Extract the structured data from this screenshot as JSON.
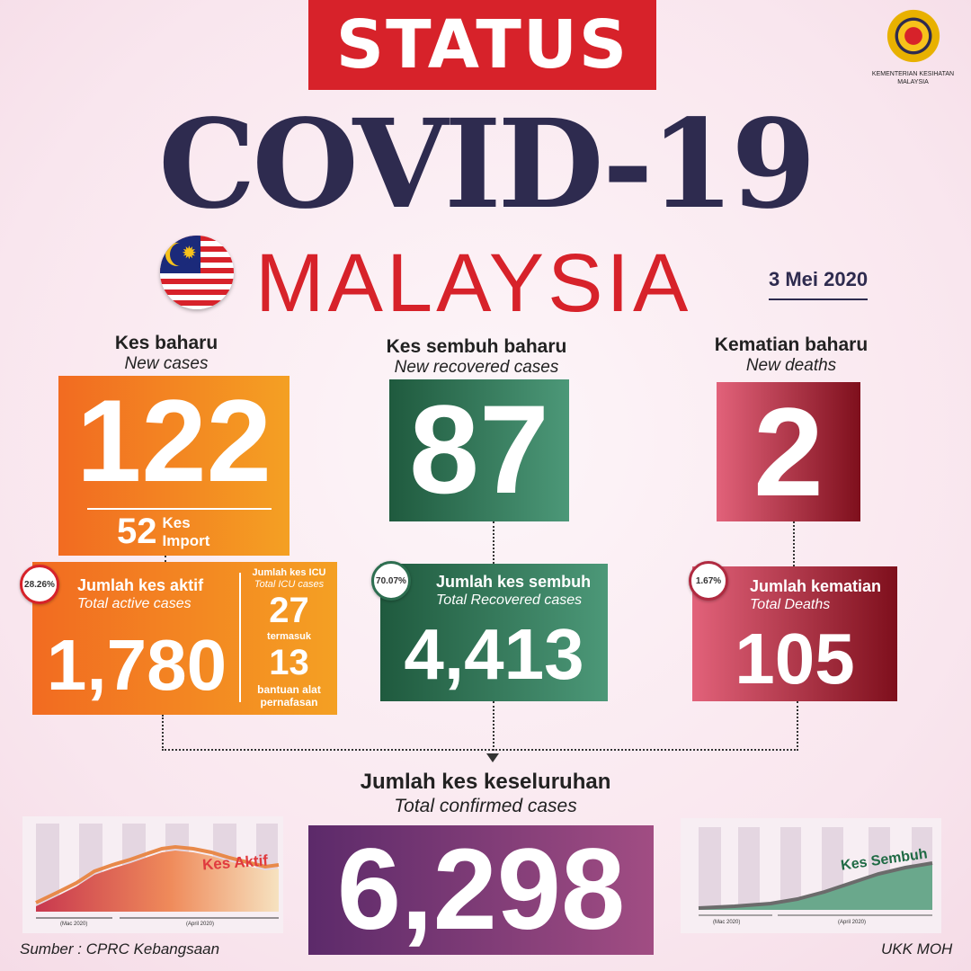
{
  "header": {
    "status": "STATUS",
    "title": "COVID-19",
    "country": "MALAYSIA",
    "date": "3 Mei 2020"
  },
  "logo": {
    "text": "KEMENTERIAN KESIHATAN MALAYSIA"
  },
  "new_cases": {
    "label": "Kes baharu",
    "sublabel": "New cases",
    "value": "122",
    "import_value": "52",
    "import_label1": "Kes",
    "import_label2": "Import",
    "color": "#f26b21"
  },
  "new_recovered": {
    "label": "Kes sembuh baharu",
    "sublabel": "New recovered cases",
    "value": "87",
    "color": "#2d6e50"
  },
  "new_deaths": {
    "label": "Kematian baharu",
    "sublabel": "New deaths",
    "value": "2",
    "color": "#b02a40"
  },
  "active": {
    "percent": "28.26%",
    "label": "Jumlah kes aktif",
    "sublabel": "Total active cases",
    "value": "1,780",
    "icu": {
      "label": "Jumlah kes ICU",
      "sublabel": "Total ICU cases",
      "value": "27",
      "including": "termasuk",
      "ventilator_value": "13",
      "ventilator_label": "bantuan alat pernafasan"
    }
  },
  "recovered": {
    "percent": "70.07%",
    "label": "Jumlah kes sembuh",
    "sublabel": "Total Recovered cases",
    "value": "4,413"
  },
  "deaths": {
    "percent": "1.67%",
    "label": "Jumlah kematian",
    "sublabel": "Total Deaths",
    "value": "105"
  },
  "total": {
    "label": "Jumlah kes keseluruhan",
    "sublabel": "Total confirmed cases",
    "value": "6,298",
    "color": "#7a3a78"
  },
  "charts": {
    "active": {
      "label": "Kes Aktif",
      "month1": "(Mac 2020)",
      "month2": "(April 2020)"
    },
    "recovered": {
      "label": "Kes Sembuh",
      "month1": "(Mac 2020)",
      "month2": "(April 2020)"
    }
  },
  "footer": {
    "source": "Sumber : CPRC Kebangsaan",
    "credit": "UKK MOH"
  }
}
